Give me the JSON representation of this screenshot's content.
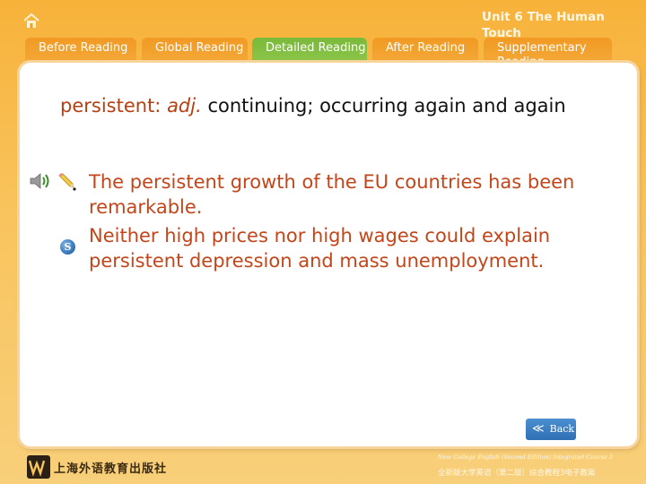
{
  "header": {
    "unit_title": "Unit 6 The Human Touch"
  },
  "tabs": [
    {
      "label": "Before Reading",
      "active": false
    },
    {
      "label": "Global Reading",
      "active": false
    },
    {
      "label": "Detailed Reading",
      "active": true
    },
    {
      "label": "After Reading",
      "active": false
    },
    {
      "label": "Supplementary Reading",
      "active": false
    }
  ],
  "content": {
    "word": "persistent:",
    "pos": "adj.",
    "definition": "continuing; occurring again and again",
    "sentences": [
      "The persistent growth of the EU countries has been remarkable.",
      "Neither high prices nor high wages could explain persistent depression and mass unemployment."
    ]
  },
  "controls": {
    "back_label": "Back",
    "back_arrows": "≪",
    "s_icon_letter": "S"
  },
  "footer": {
    "publisher": "上海外语教育出版社",
    "course_en": "New College English (Second Edition) Integrated Course 3",
    "course_cn": "全新版大学英语（第二版）综合教程3电子教案"
  },
  "colors": {
    "background": "#f7b23a",
    "tab_inactive": "#f19a24",
    "tab_active": "#7ab93a",
    "keyword": "#b54012",
    "example_text": "#c3461a",
    "back_button": "#2f6fb3"
  },
  "icons": {
    "home": "home-icon",
    "speaker": "speaker-icon",
    "pencil": "pencil-icon",
    "s_badge": "s-icon",
    "back_arrows": "double-chevron-left-icon"
  }
}
